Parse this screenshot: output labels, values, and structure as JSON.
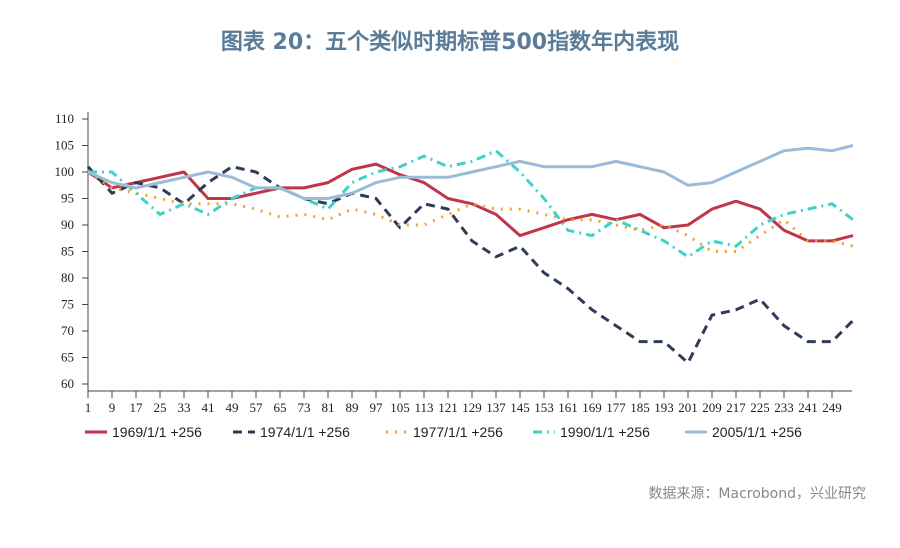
{
  "title": "图表 20：五个类似时期标普500指数年内表现",
  "source": "数据来源：Macrobond，兴业研究",
  "chart_data": {
    "type": "line",
    "ylim": [
      60,
      110
    ],
    "yticks": [
      60,
      65,
      70,
      75,
      80,
      85,
      90,
      95,
      100,
      105,
      110
    ],
    "xlim": [
      1,
      256
    ],
    "xtick_labels": [
      "1",
      "9",
      "17",
      "25",
      "33",
      "41",
      "49",
      "57",
      "65",
      "73",
      "81",
      "89",
      "97",
      "105",
      "113",
      "121",
      "129",
      "137",
      "145",
      "153",
      "161",
      "169",
      "177",
      "185",
      "193",
      "201",
      "209",
      "217",
      "225",
      "233",
      "241",
      "249"
    ],
    "legend_position": "bottom",
    "x": [
      1,
      9,
      17,
      25,
      33,
      41,
      49,
      57,
      65,
      73,
      81,
      89,
      97,
      105,
      113,
      121,
      129,
      137,
      145,
      153,
      161,
      169,
      177,
      185,
      193,
      201,
      209,
      217,
      225,
      233,
      241,
      249,
      256
    ],
    "series": [
      {
        "name": "1969/1/1  +256",
        "color": "#c0354a",
        "style": "solid",
        "values": [
          100,
          97,
          98,
          99,
          100,
          95,
          95,
          96,
          97,
          97,
          98,
          100.5,
          101.5,
          99.5,
          98,
          95,
          94,
          92,
          88,
          89.5,
          91,
          92,
          91,
          92,
          89.5,
          90,
          93,
          94.5,
          93,
          89,
          87,
          87,
          88
        ]
      },
      {
        "name": "1974/1/1  +256",
        "color": "#2e3c58",
        "style": "dashed",
        "values": [
          101,
          96,
          98,
          97,
          94,
          98,
          101,
          100,
          97,
          95,
          94,
          96,
          95,
          89.5,
          94,
          93,
          87,
          84,
          86,
          81,
          78,
          74,
          71,
          68,
          68,
          64,
          73,
          74,
          76,
          71,
          68,
          68,
          72
        ]
      },
      {
        "name": "1977/1/1  +256",
        "color": "#f0a030",
        "style": "dotted",
        "values": [
          100,
          97,
          96,
          95,
          94,
          94,
          94,
          93,
          91.5,
          92,
          91,
          93,
          92,
          90,
          90,
          92,
          94,
          93,
          93,
          92,
          91,
          91,
          90,
          89,
          90,
          88,
          85,
          85,
          88,
          91,
          87,
          87,
          86
        ]
      },
      {
        "name": "1990/1/1  +256",
        "color": "#3fd3c8",
        "style": "dashdot",
        "values": [
          100,
          100,
          96,
          92,
          94,
          92,
          95,
          97,
          97,
          95,
          93,
          98,
          100,
          101,
          103,
          101,
          102,
          104,
          100,
          95,
          89,
          88,
          91,
          89,
          87,
          84,
          87,
          86,
          90,
          92,
          93,
          94,
          91
        ]
      },
      {
        "name": "2005/1/1  +256",
        "color": "#9bbcd9",
        "style": "solid",
        "values": [
          100,
          98,
          97,
          98,
          99,
          100,
          99,
          97,
          97,
          95,
          95,
          96,
          98,
          99,
          99,
          99,
          100,
          101,
          102,
          101,
          101,
          101,
          102,
          101,
          100,
          97.5,
          98,
          100,
          102,
          104,
          104.5,
          104,
          105
        ]
      }
    ]
  }
}
